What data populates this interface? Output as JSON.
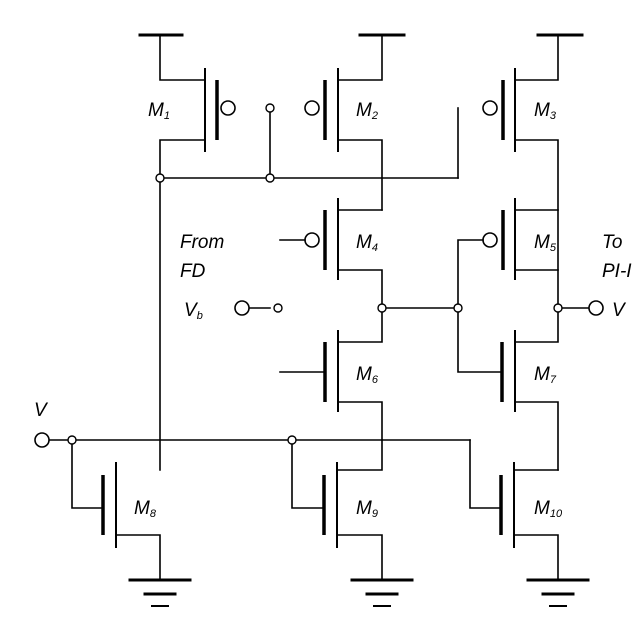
{
  "labels": {
    "m_top_left": "M",
    "m_top_mid": "M",
    "m_top_right": "M",
    "m_mid_left": "M",
    "m_mid_right": "M",
    "m_low_left": "M",
    "m_low_right": "M",
    "m_bot_left": "M",
    "m_bot_mid": "M",
    "m_bot_right": "M",
    "from_line1": "From",
    "from_line2": "FD",
    "to_line1": "To",
    "to_line2": "PI-I",
    "vin": "V",
    "vout": "V",
    "vbias": "V"
  }
}
